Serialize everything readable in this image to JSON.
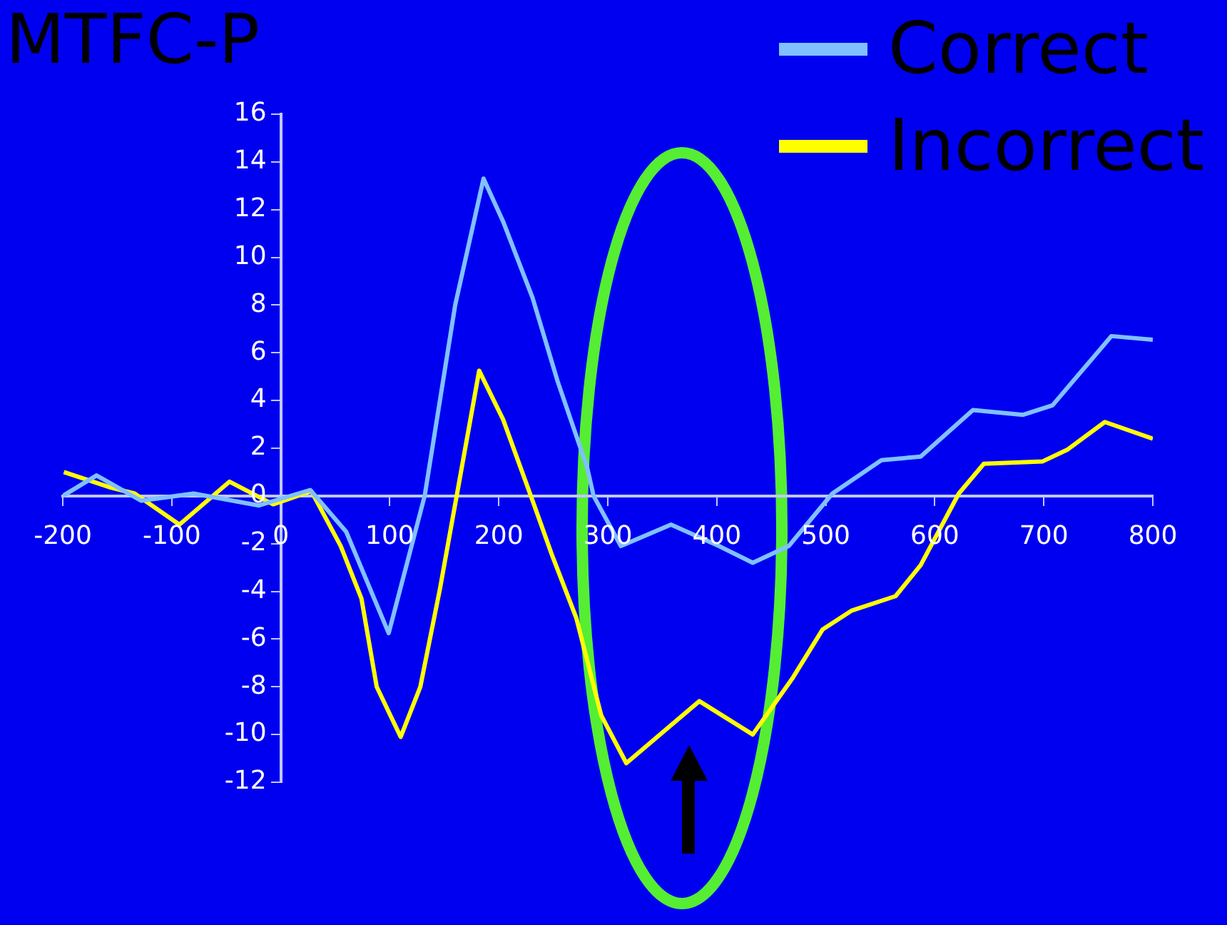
{
  "chart_data": {
    "type": "line",
    "title": "MTFC-P",
    "xlim": [
      -200,
      800
    ],
    "xticks": [
      -200,
      -100,
      0,
      100,
      200,
      300,
      400,
      500,
      600,
      700,
      800
    ],
    "ylim": [
      -12,
      16
    ],
    "yticks": [
      -12,
      -10,
      -8,
      -6,
      -4,
      -2,
      0,
      2,
      4,
      6,
      8,
      10,
      12,
      14,
      16
    ],
    "grid": false,
    "legend": "top right",
    "marker": "none",
    "line_style": "solid",
    "series": [
      {
        "name": "Correct",
        "color": "#80c0ff",
        "x": [
          -200,
          -169,
          -128,
          -80,
          -20,
          27,
          60,
          99,
          132,
          160,
          186,
          204,
          231,
          254,
          281,
          287,
          312,
          358,
          402,
          433,
          466,
          506,
          551,
          587,
          635,
          681,
          708,
          762,
          800
        ],
        "values": [
          0,
          0.86,
          -0.2,
          0.1,
          -0.4,
          0.25,
          -1.5,
          -5.75,
          0,
          8,
          13.3,
          11.5,
          8.3,
          4.8,
          1.2,
          0,
          -2.1,
          -1.2,
          -2.1,
          -2.8,
          -2.1,
          0.1,
          1.5,
          1.65,
          3.6,
          3.4,
          3.8,
          6.7,
          6.55
        ]
      },
      {
        "name": "Incorrect",
        "color": "#ffff00",
        "x": [
          -199,
          -156,
          -134,
          -93,
          -47,
          -7,
          28,
          55,
          74,
          88,
          110,
          128,
          146,
          182,
          204,
          231,
          249,
          271,
          294,
          317,
          384,
          433,
          470,
          497,
          524,
          564,
          587,
          622,
          645,
          699,
          722,
          756,
          800
        ],
        "values": [
          1.0,
          0.35,
          0.1,
          -1.2,
          0.6,
          -0.35,
          0.2,
          -2.1,
          -4.3,
          -8.0,
          -10.1,
          -8.0,
          -3.9,
          5.25,
          3.2,
          -0.2,
          -2.5,
          -5.1,
          -9.2,
          -11.2,
          -8.6,
          -10.0,
          -7.6,
          -5.6,
          -4.8,
          -4.2,
          -2.9,
          0.1,
          1.35,
          1.45,
          1.95,
          3.1,
          2.4
        ]
      }
    ]
  }
}
